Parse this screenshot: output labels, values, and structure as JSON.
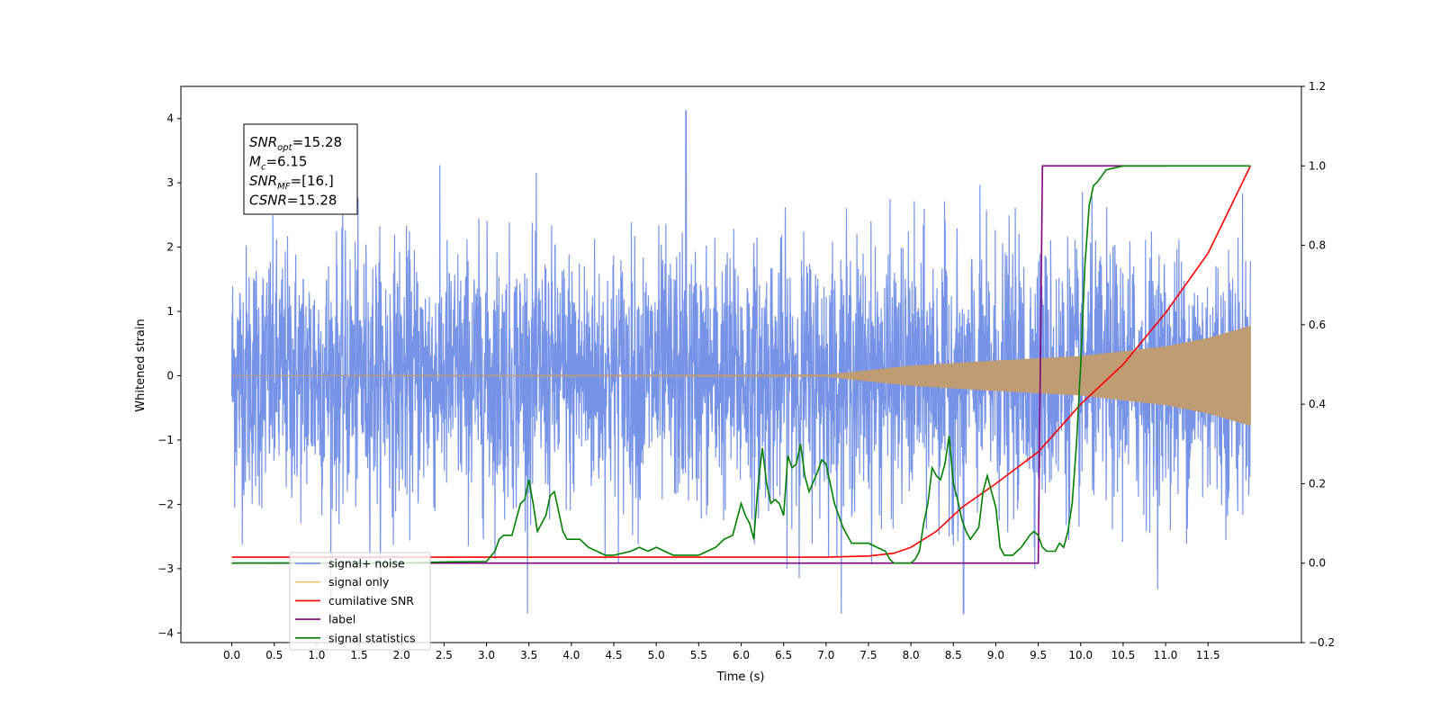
{
  "chart_data": {
    "type": "line",
    "title": "",
    "xlabel": "Time (s)",
    "ylabel_left": "Whitened strain",
    "ylabel_right": "",
    "xlim": [
      -0.6,
      12.6
    ],
    "ylim_left": [
      -4.15,
      4.5
    ],
    "ylim_right": [
      -0.2,
      1.2
    ],
    "x_ticks": [
      0.0,
      0.5,
      1.0,
      1.5,
      2.0,
      2.5,
      3.0,
      3.5,
      4.0,
      4.5,
      5.0,
      5.5,
      6.0,
      6.5,
      7.0,
      7.5,
      8.0,
      8.5,
      9.0,
      9.5,
      10.0,
      10.5,
      11.0,
      11.5
    ],
    "x_tick_labels": [
      "0.0",
      "0.5",
      "1.0",
      "1.5",
      "2.0",
      "2.5",
      "3.0",
      "3.5",
      "4.0",
      "4.5",
      "5.0",
      "5.5",
      "6.0",
      "6.5",
      "7.0",
      "7.5",
      "8.0",
      "8.5",
      "9.0",
      "9.5",
      "10.0",
      "10.5",
      "11.0",
      "11.5"
    ],
    "y_left_ticks": [
      -4,
      -3,
      -2,
      -1,
      0,
      1,
      2,
      3,
      4
    ],
    "y_left_tick_labels": [
      "−4",
      "−3",
      "−2",
      "−1",
      "0",
      "1",
      "2",
      "3",
      "4"
    ],
    "y_right_ticks": [
      -0.2,
      0.0,
      0.2,
      0.4,
      0.6,
      0.8,
      1.0,
      1.2
    ],
    "y_right_tick_labels": [
      "−0.2",
      "0.0",
      "0.2",
      "0.4",
      "0.6",
      "0.8",
      "1.0",
      "1.2"
    ],
    "grid": false,
    "legend_placement": "lower-left",
    "annotation": {
      "lines": [
        {
          "base": "SNR",
          "sub": "opt",
          "value": "=15.28"
        },
        {
          "base": "M",
          "sub": "c",
          "value": "=6.15"
        },
        {
          "base": "SNR",
          "sub": "MF",
          "value": "=[16.]"
        },
        {
          "base": "CSNR",
          "sub": "",
          "value": "=15.28"
        }
      ]
    },
    "series": [
      {
        "name": "signal+ noise",
        "axis": "left",
        "color": "#6f8de6",
        "description_values": {
          "x_range": [
            0.0,
            12.0
          ],
          "noise_band": [
            -2.5,
            2.5
          ],
          "max_peak": 4.12,
          "max_peak_x": 5.35,
          "min_peak": -3.72,
          "min_peak_x": 8.62
        }
      },
      {
        "name": "signal only",
        "axis": "left",
        "color": "#f5c76b",
        "envelope": {
          "x": [
            0.0,
            7.0,
            8.0,
            9.0,
            10.0,
            11.0,
            11.5,
            12.0
          ],
          "amplitude": [
            0.0,
            0.01,
            0.15,
            0.23,
            0.3,
            0.45,
            0.58,
            0.77
          ]
        }
      },
      {
        "name": "cumilative SNR",
        "axis": "right",
        "color": "#ff0000",
        "x": [
          0.0,
          7.0,
          7.5,
          7.8,
          8.0,
          8.3,
          8.6,
          9.0,
          9.5,
          10.0,
          10.5,
          11.0,
          11.5,
          12.0
        ],
        "y": [
          0.015,
          0.015,
          0.018,
          0.025,
          0.04,
          0.08,
          0.14,
          0.2,
          0.28,
          0.4,
          0.5,
          0.63,
          0.78,
          1.0
        ]
      },
      {
        "name": "label",
        "axis": "right",
        "color": "#800080",
        "x": [
          0.0,
          9.5,
          9.55,
          11.0
        ],
        "y": [
          0.0,
          0.0,
          1.0,
          1.0
        ]
      },
      {
        "name": "signal statistics",
        "axis": "right",
        "color": "#008000",
        "x": [
          0.0,
          2.0,
          2.5,
          3.0,
          3.1,
          3.15,
          3.2,
          3.3,
          3.4,
          3.45,
          3.5,
          3.55,
          3.6,
          3.7,
          3.75,
          3.8,
          3.85,
          3.9,
          3.95,
          4.0,
          4.1,
          4.2,
          4.3,
          4.4,
          4.5,
          4.7,
          4.8,
          4.9,
          5.0,
          5.2,
          5.5,
          5.6,
          5.7,
          5.8,
          5.9,
          6.0,
          6.05,
          6.1,
          6.15,
          6.2,
          6.25,
          6.3,
          6.35,
          6.4,
          6.45,
          6.5,
          6.55,
          6.6,
          6.65,
          6.7,
          6.75,
          6.8,
          6.9,
          6.95,
          7.0,
          7.1,
          7.2,
          7.3,
          7.4,
          7.5,
          7.6,
          7.7,
          7.75,
          7.8,
          7.9,
          8.0,
          8.05,
          8.1,
          8.15,
          8.2,
          8.25,
          8.3,
          8.35,
          8.4,
          8.45,
          8.5,
          8.55,
          8.6,
          8.65,
          8.7,
          8.8,
          8.85,
          8.9,
          8.95,
          9.0,
          9.05,
          9.1,
          9.2,
          9.3,
          9.4,
          9.45,
          9.5,
          9.55,
          9.6,
          9.7,
          9.75,
          9.8,
          9.85,
          9.9,
          9.95,
          10.0,
          10.05,
          10.1,
          10.15,
          10.2,
          10.3,
          10.5,
          11.0,
          12.0
        ],
        "y": [
          0.0,
          0.001,
          0.003,
          0.004,
          0.03,
          0.06,
          0.07,
          0.07,
          0.15,
          0.16,
          0.21,
          0.15,
          0.08,
          0.12,
          0.17,
          0.18,
          0.13,
          0.08,
          0.06,
          0.06,
          0.06,
          0.04,
          0.03,
          0.02,
          0.02,
          0.03,
          0.04,
          0.03,
          0.04,
          0.02,
          0.02,
          0.03,
          0.04,
          0.06,
          0.07,
          0.15,
          0.12,
          0.1,
          0.06,
          0.2,
          0.29,
          0.2,
          0.15,
          0.16,
          0.15,
          0.12,
          0.27,
          0.24,
          0.25,
          0.3,
          0.22,
          0.18,
          0.23,
          0.26,
          0.25,
          0.15,
          0.09,
          0.05,
          0.05,
          0.05,
          0.04,
          0.03,
          0.01,
          0.0,
          0.0,
          0.0,
          0.01,
          0.03,
          0.1,
          0.15,
          0.24,
          0.22,
          0.21,
          0.25,
          0.32,
          0.2,
          0.16,
          0.11,
          0.08,
          0.06,
          0.09,
          0.18,
          0.22,
          0.18,
          0.14,
          0.04,
          0.02,
          0.02,
          0.04,
          0.07,
          0.08,
          0.07,
          0.04,
          0.03,
          0.03,
          0.05,
          0.04,
          0.08,
          0.15,
          0.3,
          0.5,
          0.75,
          0.9,
          0.95,
          0.96,
          0.99,
          1.0,
          1.0,
          1.0
        ]
      }
    ]
  }
}
